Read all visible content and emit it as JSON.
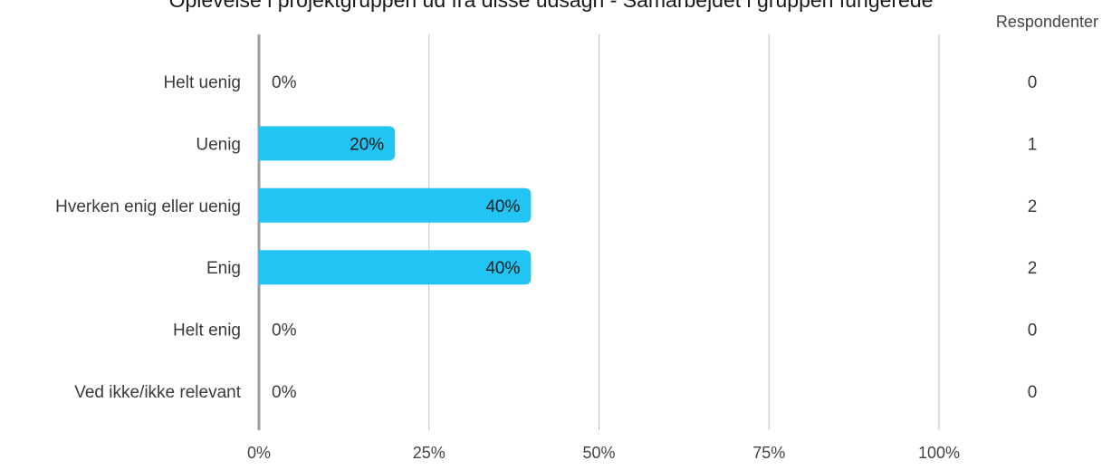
{
  "title": "Oplevelse i projektgruppen ud fra disse udsagn - Samarbejdet i gruppen fungerede",
  "respondents_header": "Respondenter",
  "chart_data": {
    "type": "bar",
    "orientation": "horizontal",
    "title": "Oplevelse i projektgruppen ud fra disse udsagn - Samarbejdet i gruppen fungerede",
    "categories": [
      "Helt uenig",
      "Uenig",
      "Hverken enig eller uenig",
      "Enig",
      "Helt enig",
      "Ved ikke/ikke relevant"
    ],
    "values": [
      0,
      20,
      40,
      40,
      0,
      0
    ],
    "value_labels": [
      "0%",
      "20%",
      "40%",
      "40%",
      "0%",
      "0%"
    ],
    "respondents": [
      0,
      1,
      2,
      2,
      0,
      0
    ],
    "xlim": [
      0,
      100
    ],
    "x_ticks": [
      0,
      25,
      50,
      75,
      100
    ],
    "x_tick_labels": [
      "0%",
      "25%",
      "50%",
      "75%",
      "100%"
    ],
    "grid": "vertical",
    "bar_color": "#21C4F3",
    "grid_color": "#BDBDBD",
    "axis_color": "#9E9E9E"
  }
}
